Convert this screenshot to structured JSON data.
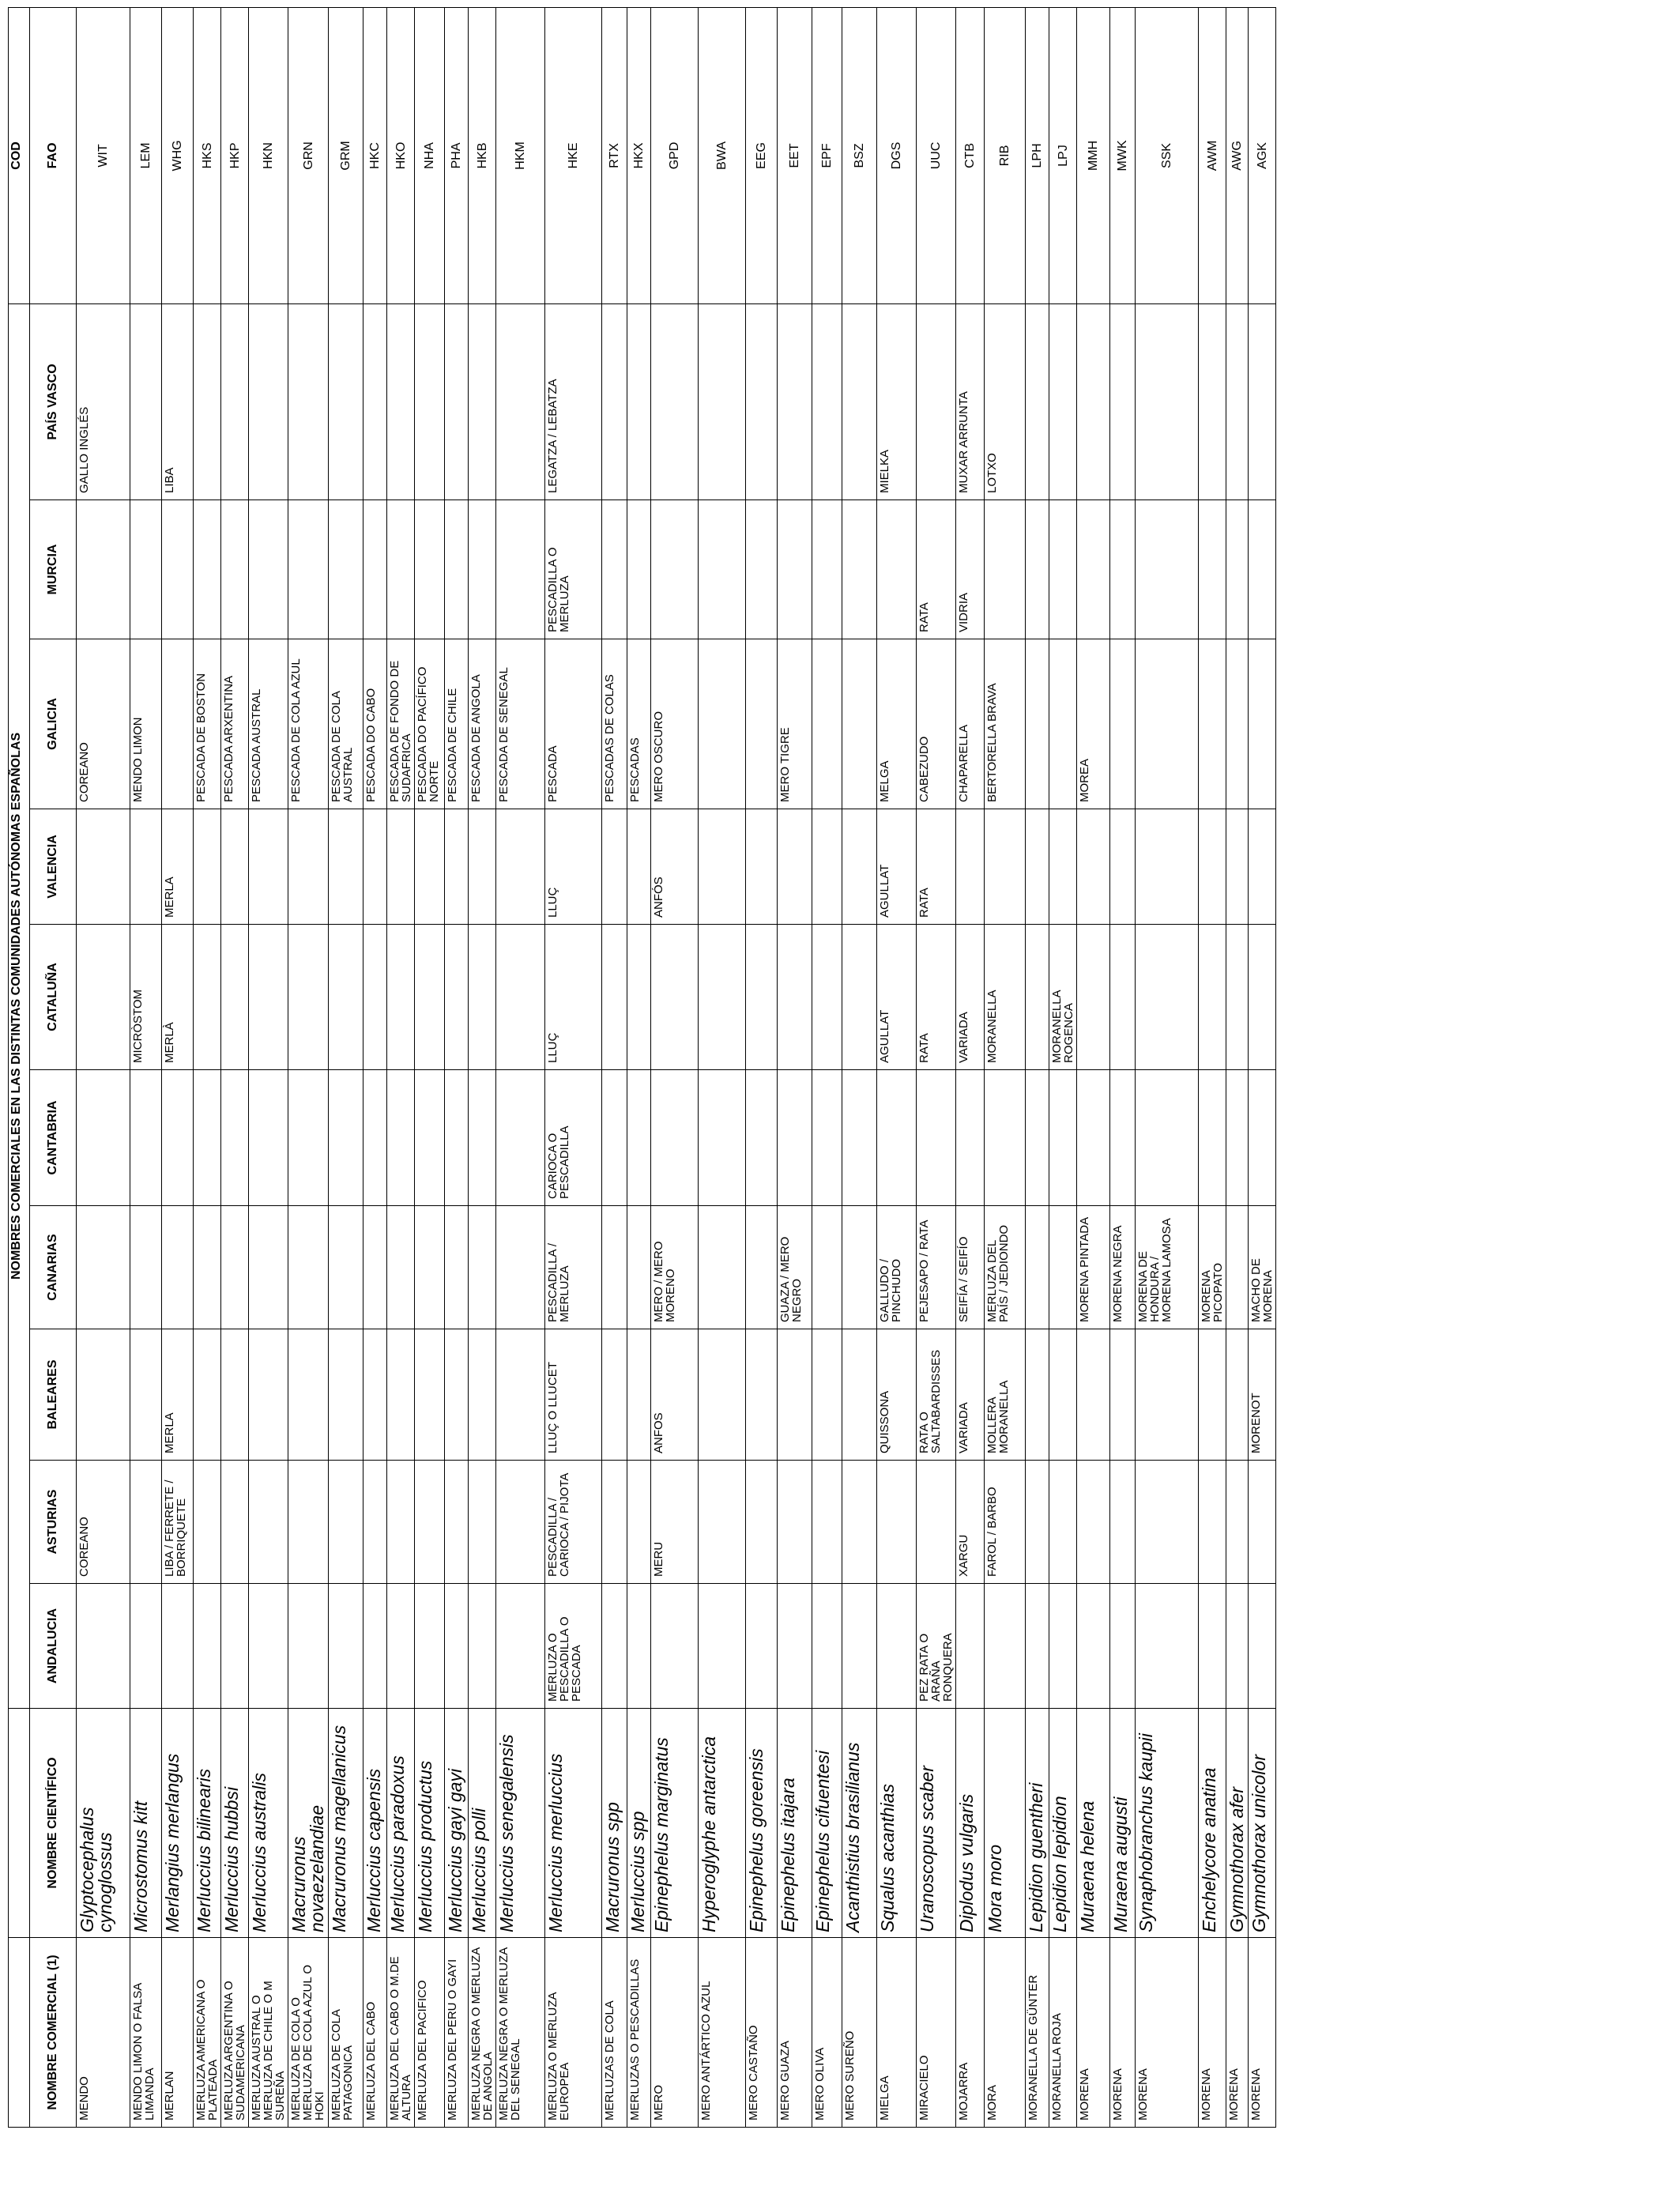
{
  "table": {
    "group_title": "NOMBRES COMERCIALES EN LAS DISTINTAS COMUNIDADES AUTÓNOMAS ESPAÑOLAS",
    "cod_title": "COD",
    "headers": [
      "NOMBRE COMERCIAL (1)",
      "NOMBRE CIENTÍFICO",
      "ANDALUCIA",
      "ASTURIAS",
      "BALEARES",
      "CANARIAS",
      "CANTABRIA",
      "CATALUÑA",
      "VALENCIA",
      "GALICIA",
      "MURCIA",
      "PAÍS VASCO",
      "FAO"
    ],
    "rows": [
      [
        "MENDO",
        "Glyptocephalus cynoglossus",
        "",
        "COREANO",
        "",
        "",
        "",
        "",
        "",
        "COREANO",
        "",
        "GALLO INGLÉS",
        "WIT"
      ],
      [
        "MENDO LIMON O FALSA LIMANDA",
        "Microstomus kitt",
        "",
        "",
        "",
        "",
        "",
        "MICRÒSTOM",
        "",
        "MENDO LIMON",
        "",
        "",
        "LEM"
      ],
      [
        "MERLAN",
        "Merlangius merlangus",
        "",
        "LIBA / FERRETE / BORRIQUETE",
        "MERLA",
        "",
        "",
        "MERLÀ",
        "MERLA",
        "",
        "",
        "LIBA",
        "WHG"
      ],
      [
        "MERLUZA AMERICANA O PLATEADA",
        "Merluccius bilinearis",
        "",
        "",
        "",
        "",
        "",
        "",
        "",
        "PESCADA DE BOSTON",
        "",
        "",
        "HKS"
      ],
      [
        "MERLUZA ARGENTINA O SUDAMERICANA",
        "Merluccius hubbsi",
        "",
        "",
        "",
        "",
        "",
        "",
        "",
        "PESCADA ARXENTINA",
        "",
        "",
        "HKP"
      ],
      [
        "MERLUZA AUSTRAL O MERLUZA DE CHILE O M SUREÑA",
        "Merluccius australis",
        "",
        "",
        "",
        "",
        "",
        "",
        "",
        "PESCADA AUSTRAL",
        "",
        "",
        "HKN"
      ],
      [
        "MERLUZA DE COLA O MERLUZA DE COLA AZUL O HOKI",
        "Macruronus novaezelandiae",
        "",
        "",
        "",
        "",
        "",
        "",
        "",
        "PESCADA DE COLA AZUL",
        "",
        "",
        "GRN"
      ],
      [
        "MERLUZA DE COLA PATAGONICA",
        "Macruronus magellanicus",
        "",
        "",
        "",
        "",
        "",
        "",
        "",
        "PESCADA DE COLA AUSTRAL",
        "",
        "",
        "GRM"
      ],
      [
        "MERLUZA DEL CABO",
        "Merluccius capensis",
        "",
        "",
        "",
        "",
        "",
        "",
        "",
        "PESCADA DO CABO",
        "",
        "",
        "HKC"
      ],
      [
        "MERLUZA DEL CABO O M.DE ALTURA",
        "Merluccius paradoxus",
        "",
        "",
        "",
        "",
        "",
        "",
        "",
        "PESCADA DE FONDO DE SUDAFRICA",
        "",
        "",
        "HKO"
      ],
      [
        "MERLUZA DEL PACIFICO",
        "Merluccius productus",
        "",
        "",
        "",
        "",
        "",
        "",
        "",
        "PESCADA DO PACÍFICO NORTE",
        "",
        "",
        "NHA"
      ],
      [
        "MERLUZA DEL PERU O GAYI",
        "Merluccius gayi gayi",
        "",
        "",
        "",
        "",
        "",
        "",
        "",
        "PESCADA DE CHILE",
        "",
        "",
        "PHA"
      ],
      [
        "MERLUZA NEGRA O MERLUZA DE ANGOLA",
        "Merluccius polli",
        "",
        "",
        "",
        "",
        "",
        "",
        "",
        "PESCADA DE ANGOLA",
        "",
        "",
        "HKB"
      ],
      [
        "MERLUZA NEGRA O MERLUZA DEL SENEGAL",
        "Merluccius senegalensis",
        "",
        "",
        "",
        "",
        "",
        "",
        "",
        "PESCADA DE SENEGAL",
        "",
        "",
        "HKM"
      ],
      [
        "MERLUZA O MERLUZA EUROPEA",
        "Merluccius merluccius",
        "MERLUZA O PESCADILLA O PESCADA",
        "PESCADILLA / CARIOCA / PIJOTA",
        "LLUÇ O LLUCET",
        "PESCADILLA / MERLUZA",
        "CARIOCA O PESCADILLA",
        "LLUÇ",
        "LLUÇ",
        "PESCADA",
        "PESCADILLA O MERLUZA",
        "LEGATZA / LEBATZA",
        "HKE"
      ],
      [
        "MERLUZAS DE COLA",
        "Macruronus  spp",
        "",
        "",
        "",
        "",
        "",
        "",
        "",
        "PESCADAS DE COLAS",
        "",
        "",
        "RTX"
      ],
      [
        "MERLUZAS O PESCADILLAS",
        "Merluccius  spp",
        "",
        "",
        "",
        "",
        "",
        "",
        "",
        "PESCADAS",
        "",
        "",
        "HKX"
      ],
      [
        "MERO",
        "Epinephelus marginatus",
        "",
        "MERU",
        "ANFOS",
        "MERO / MERO MORENO",
        "",
        "",
        "ANFÓS",
        "MERO OSCURO",
        "",
        "",
        "GPD"
      ],
      [
        "MERO ANTÁRTICO AZUL",
        "Hyperoglyphe antarctica",
        "",
        "",
        "",
        "",
        "",
        "",
        "",
        "",
        "",
        "",
        "BWA"
      ],
      [
        "MERO CASTAÑO",
        "Epinephelus goreensis",
        "",
        "",
        "",
        "",
        "",
        "",
        "",
        "",
        "",
        "",
        "EEG"
      ],
      [
        "MERO GUAZA",
        "Epinephelus itajara",
        "",
        "",
        "",
        "GUAZA / MERO NEGRO",
        "",
        "",
        "",
        "MERO TIGRE",
        "",
        "",
        "EET"
      ],
      [
        "MERO OLIVA",
        "Epinephelus cifuentesi",
        "",
        "",
        "",
        "",
        "",
        "",
        "",
        "",
        "",
        "",
        "EPF"
      ],
      [
        "MERO SUREÑO",
        "Acanthistius brasilianus",
        "",
        "",
        "",
        "",
        "",
        "",
        "",
        "",
        "",
        "",
        "BSZ"
      ],
      [
        "MIELGA",
        "Squalus acanthias",
        "",
        "",
        "QUISSONA",
        "GALLUDO / PINCHUDO",
        "",
        "AGULLAT",
        "AGULLAT",
        "MELGA",
        "",
        "MIELKA",
        "DGS"
      ],
      [
        "MIRACIELO",
        "Uranoscopus scaber",
        "PEZ RATA O ARAÑA RONQUERA",
        "",
        "RATA O SALTABARDISSES",
        "PEJESAPO / RATA",
        "",
        "RATA",
        "RATA",
        "CABEZUDO",
        "RATA",
        "",
        "UUC"
      ],
      [
        "MOJARRA",
        "Diplodus vulgaris",
        "",
        "XARGU",
        "VARIADA",
        "SEIFÍA / SEIFÍO",
        "",
        "VARIADA",
        "",
        "CHAPARELLA",
        "VIDRIA",
        "MUXAR ARRUNTA",
        "CTB"
      ],
      [
        "MORA",
        "Mora moro",
        "",
        "FAROL / BARBO",
        "MOLLERA MORANELLA",
        "MERLUZA DEL PAÍS / JEDIONDO",
        "",
        "MORANELLA",
        "",
        "BERTORELLA BRAVA",
        "",
        "LOTXO",
        "RIB"
      ],
      [
        "MORANELLA DE GÜNTER",
        "Lepidion guentheri",
        "",
        "",
        "",
        "",
        "",
        "",
        "",
        "",
        "",
        "",
        "LPH"
      ],
      [
        "MORANELLA ROJA",
        "Lepidion lepidion",
        "",
        "",
        "",
        "",
        "",
        "MORANELLA ROGENCA",
        "",
        "",
        "",
        "",
        "LPJ"
      ],
      [
        "MORENA",
        "Muraena helena",
        "",
        "",
        "",
        "MORENA PINTADA",
        "",
        "",
        "",
        "MOREA",
        "",
        "",
        "MMH"
      ],
      [
        "MORENA",
        "Muraena augusti",
        "",
        "",
        "",
        "MORENA NEGRA",
        "",
        "",
        "",
        "",
        "",
        "",
        "MWK"
      ],
      [
        "MORENA",
        "Synaphobranchus kaupii",
        "",
        "",
        "",
        "MORENA DE HONDURA / MORENA LAMOSA",
        "",
        "",
        "",
        "",
        "",
        "",
        "SSK"
      ],
      [
        "MORENA",
        "Enchelycore anatina",
        "",
        "",
        "",
        "MORENA PICOPATO",
        "",
        "",
        "",
        "",
        "",
        "",
        "AWM"
      ],
      [
        "MORENA",
        "Gymnothorax afer",
        "",
        "",
        "",
        "",
        "",
        "",
        "",
        "",
        "",
        "",
        "AWG"
      ],
      [
        "MORENA",
        "Gymnothorax unicolor",
        "",
        "",
        "MORENOT",
        "MACHO DE MORENA",
        "",
        "",
        "",
        "",
        "",
        "",
        "AGK"
      ]
    ]
  }
}
